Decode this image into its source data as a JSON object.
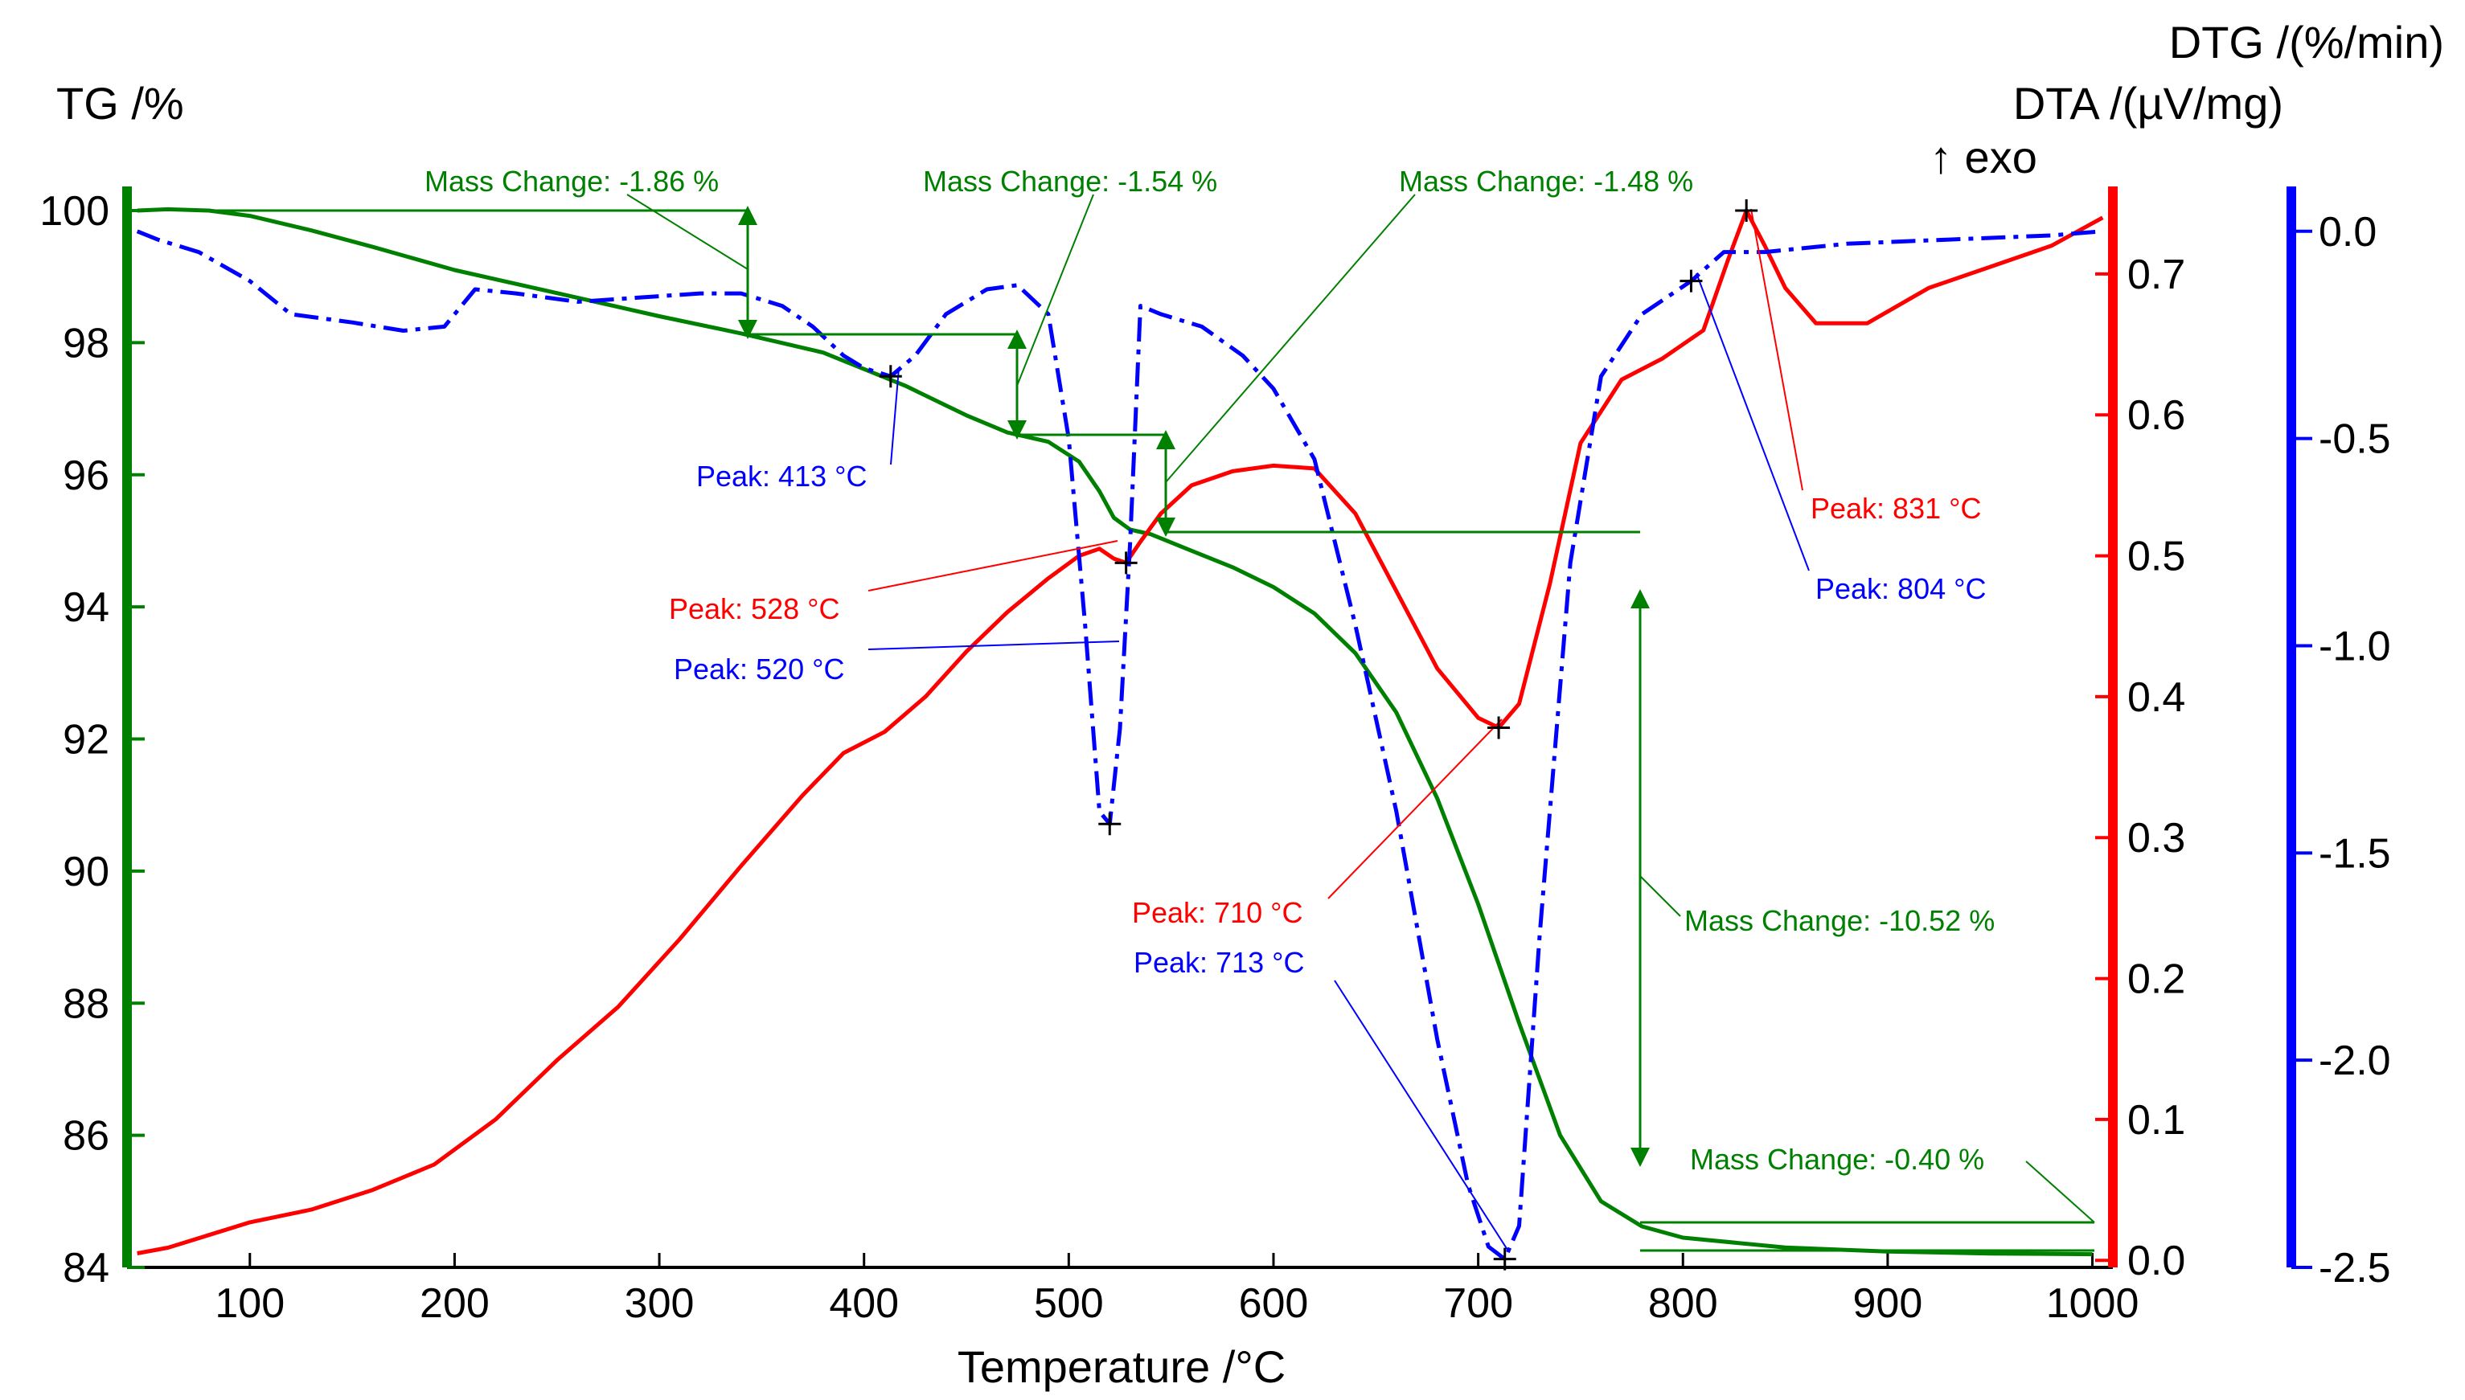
{
  "chart_data": {
    "type": "line",
    "title": "",
    "xlabel": "Temperature /°C",
    "x_ticks": [
      100,
      200,
      300,
      400,
      500,
      600,
      700,
      800,
      900,
      1000
    ],
    "xlim": [
      40,
      1010
    ],
    "axes": {
      "tg": {
        "label": "TG /%",
        "ticks": [
          84,
          86,
          88,
          90,
          92,
          94,
          96,
          98,
          100
        ],
        "tick_labels": [
          "84",
          "86",
          "88",
          "90",
          "92",
          "94",
          "96",
          "98",
          "100"
        ],
        "ylim": [
          84,
          100
        ],
        "color": "#008000",
        "side": "left"
      },
      "dta": {
        "label": "DTA /(µV/mg)",
        "sublabel": "↑ exo",
        "ticks": [
          0.0,
          0.1,
          0.2,
          0.3,
          0.4,
          0.5,
          0.6,
          0.7
        ],
        "tick_labels": [
          "0.0",
          "0.1",
          "0.2",
          "0.3",
          "0.4",
          "0.5",
          "0.6",
          "0.7"
        ],
        "ylim": [
          -0.005,
          0.745
        ],
        "color": "#ff0000",
        "side": "right"
      },
      "dtg": {
        "label": "DTG /(%/min)",
        "ticks": [
          0.0,
          -0.5,
          -1.0,
          -1.5,
          -2.0,
          -2.5
        ],
        "tick_labels": [
          "0.0",
          "-0.5",
          "-1.0",
          "-1.5",
          "-2.0",
          "-2.5"
        ],
        "ylim": [
          -2.5,
          0.05
        ],
        "color": "#0000ff",
        "side": "right-outer"
      }
    },
    "series": [
      {
        "name": "TG",
        "axis": "tg",
        "color": "#008000",
        "style": "solid",
        "x": [
          45,
          60,
          80,
          100,
          130,
          160,
          200,
          250,
          300,
          340,
          380,
          420,
          450,
          470,
          490,
          505,
          515,
          522,
          530,
          540,
          560,
          580,
          600,
          620,
          640,
          660,
          680,
          700,
          720,
          740,
          760,
          780,
          800,
          850,
          900,
          950,
          1000
        ],
        "values": [
          100,
          100.02,
          100.0,
          99.92,
          99.7,
          99.45,
          99.1,
          98.75,
          98.4,
          98.14,
          97.85,
          97.35,
          96.9,
          96.64,
          96.5,
          96.2,
          95.75,
          95.35,
          95.17,
          95.1,
          94.85,
          94.6,
          94.3,
          93.9,
          93.3,
          92.4,
          91.1,
          89.5,
          87.7,
          86.0,
          85.0,
          84.62,
          84.45,
          84.3,
          84.24,
          84.21,
          84.2
        ]
      },
      {
        "name": "DTA",
        "axis": "dta",
        "color": "#ff0000",
        "style": "solid",
        "x": [
          45,
          60,
          80,
          100,
          130,
          160,
          190,
          220,
          250,
          280,
          310,
          340,
          370,
          390,
          410,
          430,
          450,
          470,
          490,
          505,
          515,
          522,
          528,
          535,
          545,
          560,
          580,
          600,
          620,
          640,
          660,
          680,
          700,
          710,
          720,
          735,
          750,
          770,
          790,
          810,
          822,
          831,
          840,
          850,
          865,
          890,
          920,
          950,
          980,
          1005
        ],
        "values": [
          0.005,
          0.009,
          0.018,
          0.027,
          0.036,
          0.05,
          0.068,
          0.1,
          0.142,
          0.18,
          0.228,
          0.28,
          0.33,
          0.36,
          0.375,
          0.4,
          0.432,
          0.46,
          0.484,
          0.5,
          0.505,
          0.498,
          0.495,
          0.51,
          0.53,
          0.55,
          0.56,
          0.564,
          0.562,
          0.53,
          0.475,
          0.42,
          0.385,
          0.378,
          0.395,
          0.48,
          0.58,
          0.625,
          0.64,
          0.66,
          0.71,
          0.745,
          0.72,
          0.69,
          0.665,
          0.665,
          0.69,
          0.705,
          0.72,
          0.74
        ]
      },
      {
        "name": "DTG",
        "axis": "dtg",
        "color": "#0000ff",
        "style": "dash-dot",
        "x": [
          45,
          55,
          75,
          100,
          120,
          150,
          175,
          195,
          210,
          230,
          260,
          290,
          320,
          340,
          360,
          375,
          390,
          400,
          413,
          425,
          440,
          460,
          475,
          490,
          500,
          508,
          515,
          520,
          525,
          530,
          535,
          545,
          565,
          585,
          600,
          620,
          640,
          660,
          680,
          695,
          705,
          713,
          720,
          730,
          745,
          760,
          780,
          804,
          820,
          840,
          880,
          930,
          980,
          1005
        ],
        "values": [
          0.0,
          -0.02,
          -0.05,
          -0.12,
          -0.2,
          -0.22,
          -0.24,
          -0.23,
          -0.14,
          -0.15,
          -0.17,
          -0.16,
          -0.15,
          -0.15,
          -0.18,
          -0.23,
          -0.3,
          -0.33,
          -0.35,
          -0.3,
          -0.2,
          -0.14,
          -0.13,
          -0.2,
          -0.5,
          -0.95,
          -1.4,
          -1.43,
          -1.2,
          -0.75,
          -0.18,
          -0.2,
          -0.23,
          -0.3,
          -0.38,
          -0.55,
          -0.95,
          -1.4,
          -1.95,
          -2.3,
          -2.45,
          -2.48,
          -2.4,
          -1.7,
          -0.8,
          -0.35,
          -0.2,
          -0.12,
          -0.05,
          -0.05,
          -0.03,
          -0.02,
          -0.01,
          0.0
        ]
      }
    ],
    "annotations": {
      "mass_changes": [
        {
          "text": "Mass Change: -1.86 %"
        },
        {
          "text": "Mass Change: -1.54 %"
        },
        {
          "text": "Mass Change: -1.48 %"
        },
        {
          "text": "Mass Change: -10.52 %"
        },
        {
          "text": "Mass Change: -0.40 %"
        }
      ],
      "peaks": [
        {
          "text": "Peak: 413 °C",
          "series": "DTG",
          "x": 413,
          "y": -0.35
        },
        {
          "text": "Peak: 528 °C",
          "series": "DTA",
          "x": 528,
          "y": 0.495
        },
        {
          "text": "Peak: 520 °C",
          "series": "DTG",
          "x": 520,
          "y": -1.43
        },
        {
          "text": "Peak: 710 °C",
          "series": "DTA",
          "x": 710,
          "y": 0.378
        },
        {
          "text": "Peak: 713 °C",
          "series": "DTG",
          "x": 713,
          "y": -2.48
        },
        {
          "text": "Peak: 831 °C",
          "series": "DTA",
          "x": 831,
          "y": 0.745
        },
        {
          "text": "Peak: 804 °C",
          "series": "DTG",
          "x": 804,
          "y": -0.12
        }
      ]
    }
  }
}
